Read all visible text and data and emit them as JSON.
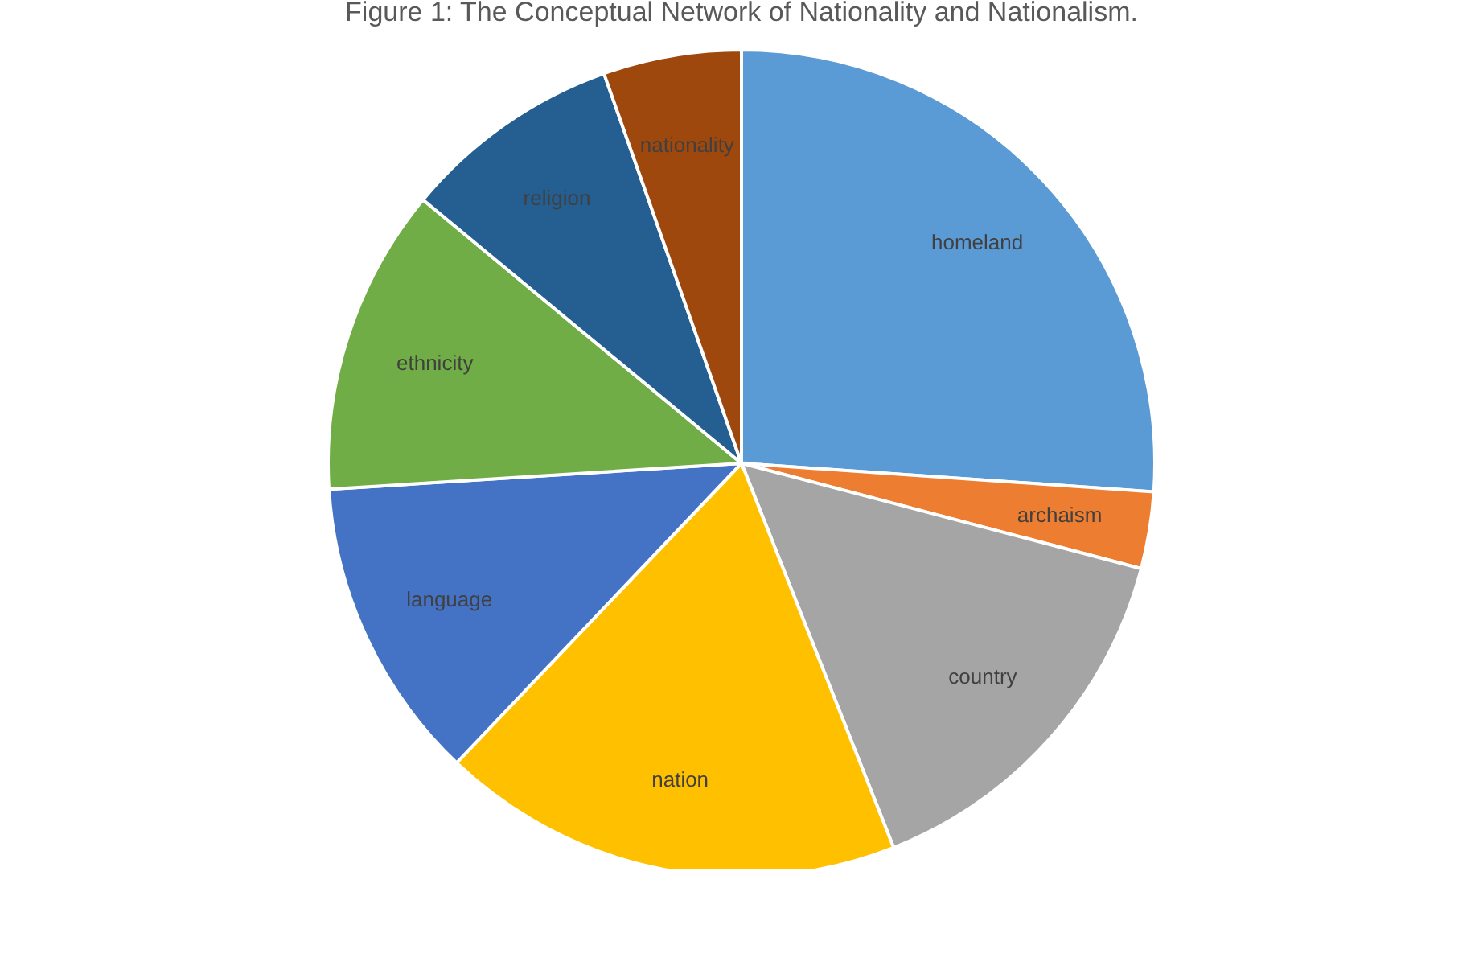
{
  "chart_data": {
    "type": "pie",
    "title": "Figure 1: The Conceptual Network of Nationality and Nationalism.",
    "categories": [
      "homeland",
      "archaism",
      "country",
      "nation",
      "language",
      "ethnicity",
      "religion",
      "nationality"
    ],
    "values": [
      26.1,
      3.0,
      14.9,
      18.1,
      11.9,
      12.0,
      8.6,
      5.4
    ],
    "colors": [
      "#5b9bd5",
      "#ed7d31",
      "#a5a5a5",
      "#ffc000",
      "#4472c4",
      "#70ad47",
      "#255e91",
      "#9e480e"
    ]
  }
}
